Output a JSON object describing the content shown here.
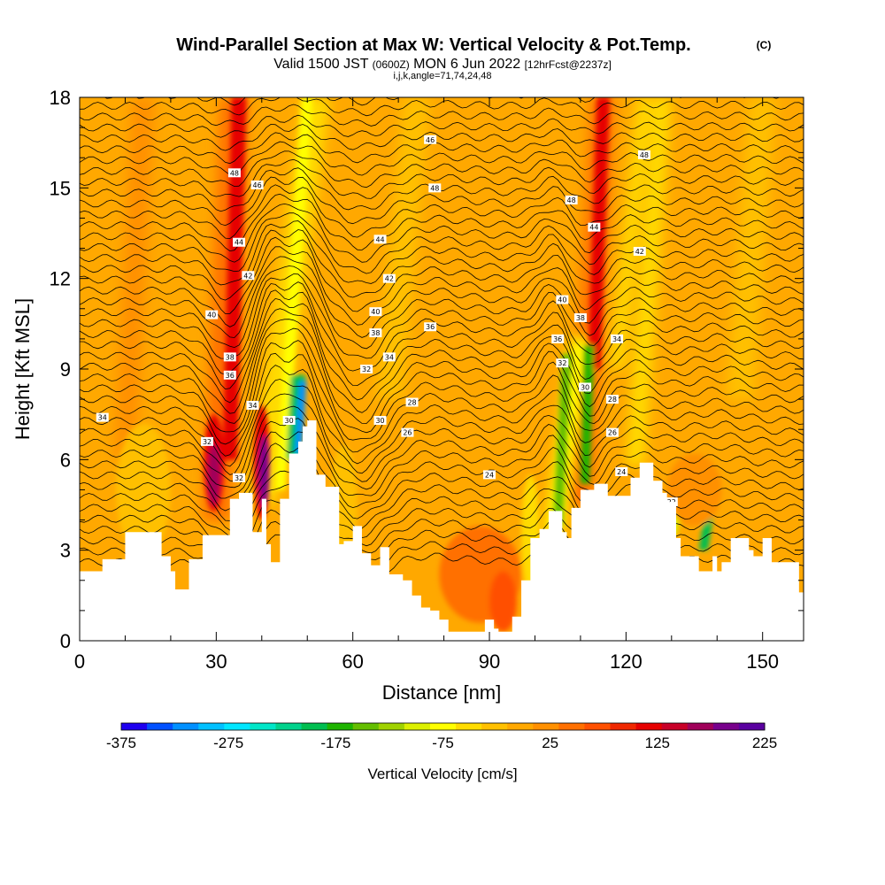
{
  "title": "Wind-Parallel Section at Max W: Vertical Velocity & Pot.Temp.",
  "copyright": "(C)",
  "subtitle": {
    "valid": "Valid 1500 JST",
    "utc": "(0600Z)",
    "date": "MON 6 Jun 2022",
    "fcst": "[12hrFcst@2237z]"
  },
  "params": "i,j,k,angle=71,74,24,48",
  "colorbar": {
    "title": "Vertical Velocity [cm/s]",
    "tick_labels": [
      "-375",
      "-275",
      "-175",
      "-75",
      "25",
      "125",
      "225"
    ],
    "colors": [
      "#1e00f0",
      "#0050ff",
      "#0090ff",
      "#00c0ff",
      "#00e6ff",
      "#00e6c8",
      "#00d28c",
      "#00be50",
      "#1eb400",
      "#64be00",
      "#a0d200",
      "#dcf000",
      "#ffff00",
      "#ffdc00",
      "#ffc000",
      "#ffa800",
      "#ff9000",
      "#ff7000",
      "#ff5000",
      "#f02800",
      "#e60000",
      "#c80028",
      "#a0005a",
      "#78008c",
      "#5a00a0"
    ]
  },
  "chart_data": {
    "type": "heatmap",
    "xlabel": "Distance [nm]",
    "ylabel": "Height [Kft MSL]",
    "xlim": [
      0,
      159
    ],
    "ylim": [
      0,
      18
    ],
    "x_ticks": [
      "0",
      "30",
      "60",
      "90",
      "120",
      "150"
    ],
    "y_ticks": [
      "0",
      "3",
      "6",
      "9",
      "12",
      "15",
      "18"
    ],
    "colorbar_range": [
      -375,
      225
    ],
    "terrain": [
      [
        0,
        2.3
      ],
      [
        5,
        2.7
      ],
      [
        10,
        3.6
      ],
      [
        12,
        3.6
      ],
      [
        15,
        3.6
      ],
      [
        18,
        2.8
      ],
      [
        20,
        2.3
      ],
      [
        21,
        1.7
      ],
      [
        22,
        1.7
      ],
      [
        24,
        2.7
      ],
      [
        27,
        3.5
      ],
      [
        30,
        3.5
      ],
      [
        33,
        4.7
      ],
      [
        35,
        4.9
      ],
      [
        38,
        3.6
      ],
      [
        40,
        4.7
      ],
      [
        41,
        3.2
      ],
      [
        42,
        2.6
      ],
      [
        43,
        2.6
      ],
      [
        44,
        4.7
      ],
      [
        46,
        6.2
      ],
      [
        48,
        6.6
      ],
      [
        49,
        7.1
      ],
      [
        50,
        7.3
      ],
      [
        51,
        7.3
      ],
      [
        52,
        5.5
      ],
      [
        54,
        5.1
      ],
      [
        56,
        5.1
      ],
      [
        57,
        3.2
      ],
      [
        58,
        3.3
      ],
      [
        60,
        3.8
      ],
      [
        62,
        2.9
      ],
      [
        64,
        2.5
      ],
      [
        66,
        3.1
      ],
      [
        68,
        2.2
      ],
      [
        71,
        2.0
      ],
      [
        73,
        1.5
      ],
      [
        75,
        1.1
      ],
      [
        77,
        1.0
      ],
      [
        79,
        0.7
      ],
      [
        81,
        0.3
      ],
      [
        83,
        0.3
      ],
      [
        85,
        0.3
      ],
      [
        88,
        0.3
      ],
      [
        89,
        0.7
      ],
      [
        91,
        0.4
      ],
      [
        92,
        0.3
      ],
      [
        93,
        0.3
      ],
      [
        94,
        0.3
      ],
      [
        95,
        0.8
      ],
      [
        97,
        2.0
      ],
      [
        99,
        3.4
      ],
      [
        101,
        3.7
      ],
      [
        103,
        4.3
      ],
      [
        106,
        3.6
      ],
      [
        107,
        3.4
      ],
      [
        108,
        4.4
      ],
      [
        110,
        5.0
      ],
      [
        113,
        5.2
      ],
      [
        116,
        4.8
      ],
      [
        119,
        4.8
      ],
      [
        121,
        5.4
      ],
      [
        123,
        5.9
      ],
      [
        125,
        5.9
      ],
      [
        126,
        5.3
      ],
      [
        128,
        4.9
      ],
      [
        129,
        4.6
      ],
      [
        130,
        4.6
      ],
      [
        131,
        3.4
      ],
      [
        132,
        2.8
      ],
      [
        135,
        2.8
      ],
      [
        136,
        2.3
      ],
      [
        138,
        2.3
      ],
      [
        139,
        2.8
      ],
      [
        140,
        2.3
      ],
      [
        141,
        2.6
      ],
      [
        143,
        3.4
      ],
      [
        145,
        3.4
      ],
      [
        147,
        3.0
      ],
      [
        148,
        2.8
      ],
      [
        150,
        3.4
      ],
      [
        152,
        2.6
      ],
      [
        156,
        2.6
      ],
      [
        158,
        1.6
      ],
      [
        159,
        1.8
      ]
    ],
    "contour_labels": [
      {
        "text": "48",
        "x": 34,
        "y": 15.5
      },
      {
        "text": "46",
        "x": 39,
        "y": 15.1
      },
      {
        "text": "44",
        "x": 35,
        "y": 13.2
      },
      {
        "text": "42",
        "x": 37,
        "y": 12.1
      },
      {
        "text": "40",
        "x": 29,
        "y": 10.8
      },
      {
        "text": "38",
        "x": 33,
        "y": 9.4
      },
      {
        "text": "36",
        "x": 33,
        "y": 8.8
      },
      {
        "text": "34",
        "x": 38,
        "y": 7.8
      },
      {
        "text": "32",
        "x": 28,
        "y": 6.6
      },
      {
        "text": "32",
        "x": 35,
        "y": 5.4
      },
      {
        "text": "30",
        "x": 46,
        "y": 7.3
      },
      {
        "text": "34",
        "x": 5,
        "y": 7.4
      },
      {
        "text": "46",
        "x": 77,
        "y": 16.6
      },
      {
        "text": "48",
        "x": 78,
        "y": 15.0
      },
      {
        "text": "44",
        "x": 66,
        "y": 13.3
      },
      {
        "text": "42",
        "x": 68,
        "y": 12.0
      },
      {
        "text": "40",
        "x": 65,
        "y": 10.9
      },
      {
        "text": "38",
        "x": 65,
        "y": 10.2
      },
      {
        "text": "36",
        "x": 77,
        "y": 10.4
      },
      {
        "text": "34",
        "x": 68,
        "y": 9.4
      },
      {
        "text": "32",
        "x": 63,
        "y": 9.0
      },
      {
        "text": "30",
        "x": 66,
        "y": 7.3
      },
      {
        "text": "28",
        "x": 73,
        "y": 7.9
      },
      {
        "text": "26",
        "x": 72,
        "y": 6.9
      },
      {
        "text": "24",
        "x": 90,
        "y": 5.5
      },
      {
        "text": "48",
        "x": 124,
        "y": 16.1
      },
      {
        "text": "48",
        "x": 108,
        "y": 14.6
      },
      {
        "text": "44",
        "x": 113,
        "y": 13.7
      },
      {
        "text": "42",
        "x": 123,
        "y": 12.9
      },
      {
        "text": "40",
        "x": 106,
        "y": 11.3
      },
      {
        "text": "38",
        "x": 110,
        "y": 10.7
      },
      {
        "text": "36",
        "x": 105,
        "y": 10.0
      },
      {
        "text": "34",
        "x": 118,
        "y": 10.0
      },
      {
        "text": "32",
        "x": 106,
        "y": 9.2
      },
      {
        "text": "30",
        "x": 111,
        "y": 8.4
      },
      {
        "text": "28",
        "x": 117,
        "y": 8.0
      },
      {
        "text": "26",
        "x": 117,
        "y": 6.9
      },
      {
        "text": "24",
        "x": 119,
        "y": 5.6
      },
      {
        "text": "22",
        "x": 130,
        "y": 4.6
      }
    ]
  }
}
